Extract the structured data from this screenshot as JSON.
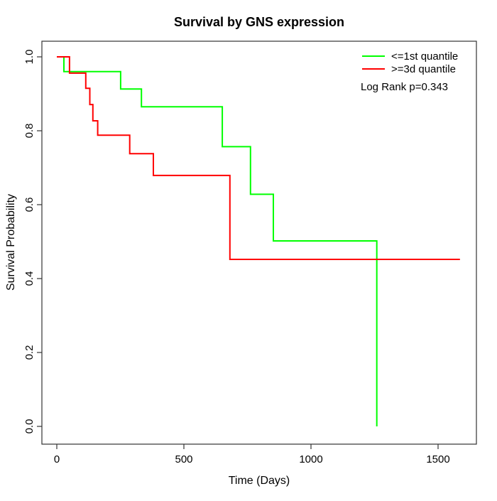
{
  "chart_data": {
    "type": "line",
    "subtype": "kaplan-meier-step",
    "title": "Survival by GNS expression",
    "xlabel": "Time (Days)",
    "ylabel": "Survival Probability",
    "x_ticks": [
      0,
      500,
      1000,
      1500
    ],
    "x_tick_labels": [
      "0",
      "500",
      "1000",
      "1500"
    ],
    "y_ticks": [
      0.0,
      0.2,
      0.4,
      0.6,
      0.8,
      1.0
    ],
    "y_tick_labels": [
      "0.0",
      "0.2",
      "0.4",
      "0.6",
      "0.8",
      "1.0"
    ],
    "xlim": [
      -59,
      1651
    ],
    "ylim": [
      -0.048,
      1.042
    ],
    "grid": false,
    "legend_position": "top-right",
    "annotation": "Log Rank p=0.343",
    "series": [
      {
        "name": "<=1st quantile",
        "color": "#00ff00",
        "steps": [
          [
            0,
            1.0
          ],
          [
            28,
            0.96
          ],
          [
            251,
            0.913
          ],
          [
            333,
            0.865
          ],
          [
            651,
            0.757
          ],
          [
            762,
            0.628
          ],
          [
            852,
            0.502
          ],
          [
            1259,
            0.0
          ]
        ],
        "end_time": 1259
      },
      {
        "name": ">=3d quantile",
        "color": "#ff0000",
        "steps": [
          [
            0,
            1.0
          ],
          [
            50,
            0.956
          ],
          [
            114,
            0.915
          ],
          [
            130,
            0.871
          ],
          [
            142,
            0.827
          ],
          [
            161,
            0.788
          ],
          [
            287,
            0.738
          ],
          [
            380,
            0.679
          ],
          [
            681,
            0.452
          ]
        ],
        "end_time": 1586
      }
    ]
  }
}
